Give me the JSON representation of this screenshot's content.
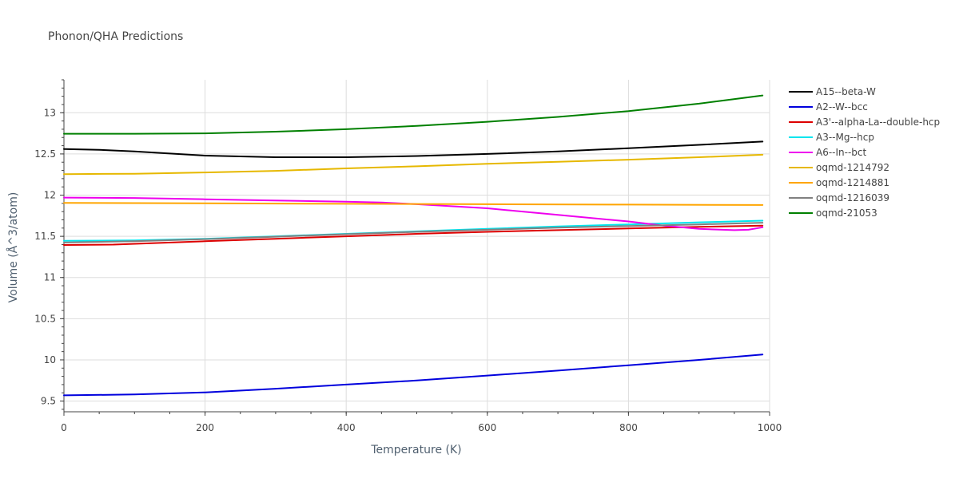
{
  "chart_data": {
    "type": "line",
    "title": "Phonon/QHA Predictions",
    "xlabel": "Temperature (K)",
    "ylabel": "Volume (Å^3/atom)",
    "xlim": [
      0,
      1000
    ],
    "ylim": [
      9.37,
      13.4
    ],
    "xticks": [
      0,
      200,
      400,
      600,
      800,
      1000
    ],
    "yticks": [
      9.5,
      10,
      10.5,
      11,
      11.5,
      12,
      12.5,
      13
    ],
    "grid": true,
    "legend_position": "top-right",
    "series": [
      {
        "name": "A15--beta-W",
        "color": "#000000",
        "x": [
          0,
          50,
          100,
          200,
          300,
          400,
          500,
          600,
          700,
          800,
          900,
          990
        ],
        "y": [
          12.56,
          12.55,
          12.53,
          12.48,
          12.46,
          12.46,
          12.475,
          12.5,
          12.53,
          12.57,
          12.61,
          12.65
        ]
      },
      {
        "name": "A2--W--bcc",
        "color": "#0000dd",
        "x": [
          0,
          100,
          200,
          300,
          400,
          500,
          600,
          700,
          800,
          900,
          990
        ],
        "y": [
          9.57,
          9.58,
          9.605,
          9.65,
          9.7,
          9.75,
          9.81,
          9.87,
          9.935,
          10.0,
          10.065
        ]
      },
      {
        "name": "A3'--alpha-La--double-hcp",
        "color": "#dd0000",
        "x": [
          0,
          70,
          200,
          300,
          400,
          500,
          600,
          700,
          800,
          900,
          990
        ],
        "y": [
          11.395,
          11.4,
          11.44,
          11.47,
          11.5,
          11.53,
          11.555,
          11.575,
          11.595,
          11.615,
          11.63
        ]
      },
      {
        "name": "A3--Mg--hcp",
        "color": "#00e5ee",
        "x": [
          0,
          100,
          200,
          300,
          400,
          500,
          600,
          700,
          800,
          900,
          990
        ],
        "y": [
          11.445,
          11.45,
          11.47,
          11.5,
          11.53,
          11.56,
          11.59,
          11.62,
          11.645,
          11.67,
          11.69
        ]
      },
      {
        "name": "A6--In--bct",
        "color": "#ee00ee",
        "x": [
          0,
          100,
          200,
          300,
          400,
          450,
          500,
          600,
          700,
          800,
          850,
          900,
          950,
          970,
          990
        ],
        "y": [
          11.97,
          11.965,
          11.95,
          11.935,
          11.92,
          11.91,
          11.89,
          11.84,
          11.76,
          11.68,
          11.63,
          11.59,
          11.575,
          11.58,
          11.61
        ]
      },
      {
        "name": "oqmd-1214792",
        "color": "#e6b800",
        "x": [
          0,
          100,
          200,
          300,
          400,
          500,
          600,
          700,
          800,
          900,
          990
        ],
        "y": [
          12.255,
          12.26,
          12.275,
          12.295,
          12.325,
          12.35,
          12.38,
          12.405,
          12.43,
          12.46,
          12.49
        ]
      },
      {
        "name": "oqmd-1214881",
        "color": "#ffa500",
        "x": [
          0,
          200,
          400,
          600,
          800,
          990
        ],
        "y": [
          11.905,
          11.9,
          11.895,
          11.89,
          11.885,
          11.88
        ]
      },
      {
        "name": "oqmd-1216039",
        "color": "#808080",
        "x": [
          0,
          100,
          200,
          300,
          400,
          500,
          600,
          700,
          800,
          900,
          990
        ],
        "y": [
          11.425,
          11.44,
          11.465,
          11.495,
          11.525,
          11.555,
          11.58,
          11.605,
          11.625,
          11.645,
          11.665
        ]
      },
      {
        "name": "oqmd-21053",
        "color": "#008000",
        "x": [
          0,
          100,
          200,
          300,
          400,
          500,
          600,
          700,
          800,
          900,
          990
        ],
        "y": [
          12.745,
          12.745,
          12.75,
          12.77,
          12.8,
          12.84,
          12.89,
          12.95,
          13.02,
          13.11,
          13.21
        ]
      }
    ]
  }
}
